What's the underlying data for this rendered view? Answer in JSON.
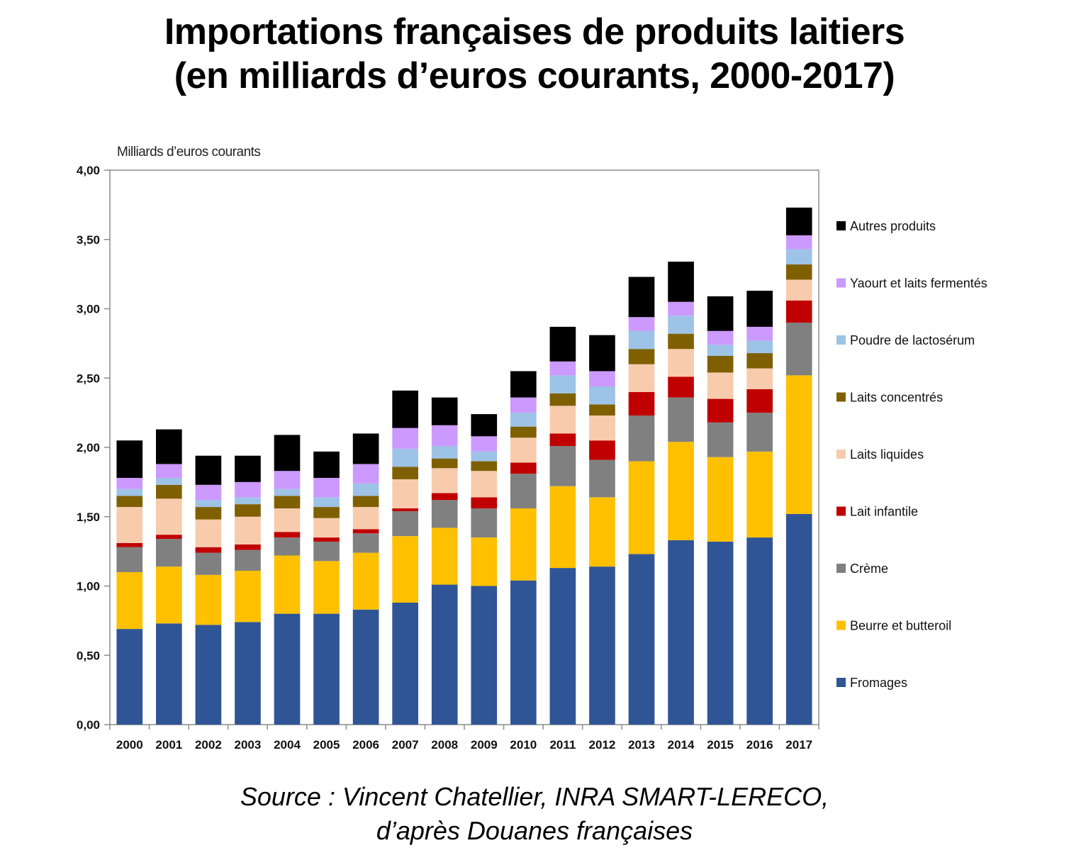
{
  "title_line1": "Importations françaises de produits laitiers",
  "title_line2": "(en milliards d’euros courants, 2000-2017)",
  "source_line1": "Source : Vincent Chatellier, INRA SMART-LERECO,",
  "source_line2": "d’après Douanes françaises",
  "chart_data": {
    "type": "bar",
    "stacked": true,
    "title": "Importations françaises de produits laitiers (en milliards d’euros courants, 2000-2017)",
    "ylabel": "Milliards d’euros courants",
    "xlabel": "",
    "ylim": [
      0,
      4
    ],
    "yticks": [
      "0,00",
      "0,50",
      "1,00",
      "1,50",
      "2,00",
      "2,50",
      "3,00",
      "3,50",
      "4,00"
    ],
    "ytick_values": [
      0,
      0.5,
      1,
      1.5,
      2,
      2.5,
      3,
      3.5,
      4
    ],
    "grid": false,
    "legend_position": "right",
    "categories": [
      "2000",
      "2001",
      "2002",
      "2003",
      "2004",
      "2005",
      "2006",
      "2007",
      "2008",
      "2009",
      "2010",
      "2011",
      "2012",
      "2013",
      "2014",
      "2015",
      "2016",
      "2017"
    ],
    "series": [
      {
        "name": "Fromages",
        "color": "#2f5597",
        "values": [
          0.69,
          0.73,
          0.72,
          0.74,
          0.8,
          0.8,
          0.83,
          0.88,
          1.01,
          1.0,
          1.04,
          1.13,
          1.14,
          1.23,
          1.33,
          1.32,
          1.35,
          1.52
        ]
      },
      {
        "name": "Beurre et butteroil",
        "color": "#ffc000",
        "values": [
          0.41,
          0.41,
          0.36,
          0.37,
          0.42,
          0.38,
          0.41,
          0.48,
          0.41,
          0.35,
          0.52,
          0.59,
          0.5,
          0.67,
          0.71,
          0.61,
          0.62,
          1.0
        ]
      },
      {
        "name": "Crème",
        "color": "#808080",
        "values": [
          0.18,
          0.2,
          0.16,
          0.15,
          0.13,
          0.14,
          0.14,
          0.18,
          0.2,
          0.21,
          0.25,
          0.29,
          0.27,
          0.33,
          0.32,
          0.25,
          0.28,
          0.38
        ]
      },
      {
        "name": "Lait infantile",
        "color": "#c00000",
        "values": [
          0.03,
          0.03,
          0.04,
          0.04,
          0.04,
          0.03,
          0.03,
          0.02,
          0.05,
          0.08,
          0.08,
          0.09,
          0.14,
          0.17,
          0.15,
          0.17,
          0.17,
          0.16
        ]
      },
      {
        "name": "Laits liquides",
        "color": "#f8cbad",
        "values": [
          0.26,
          0.26,
          0.2,
          0.2,
          0.17,
          0.14,
          0.16,
          0.21,
          0.18,
          0.19,
          0.18,
          0.2,
          0.18,
          0.2,
          0.2,
          0.19,
          0.15,
          0.15
        ]
      },
      {
        "name": "Laits concentrés",
        "color": "#7f6000",
        "values": [
          0.08,
          0.1,
          0.09,
          0.09,
          0.09,
          0.08,
          0.08,
          0.09,
          0.07,
          0.07,
          0.08,
          0.09,
          0.08,
          0.11,
          0.11,
          0.12,
          0.11,
          0.11
        ]
      },
      {
        "name": "Poudre de lactosérum",
        "color": "#9dc3e6",
        "values": [
          0.05,
          0.05,
          0.05,
          0.05,
          0.05,
          0.07,
          0.09,
          0.13,
          0.09,
          0.07,
          0.1,
          0.13,
          0.13,
          0.13,
          0.13,
          0.08,
          0.09,
          0.11
        ]
      },
      {
        "name": "Yaourt et laits fermentés",
        "color": "#cc99ff",
        "values": [
          0.08,
          0.1,
          0.11,
          0.11,
          0.13,
          0.14,
          0.14,
          0.15,
          0.15,
          0.11,
          0.11,
          0.1,
          0.11,
          0.1,
          0.1,
          0.1,
          0.1,
          0.1
        ]
      },
      {
        "name": "Autres produits",
        "color": "#000000",
        "values": [
          0.27,
          0.25,
          0.21,
          0.19,
          0.26,
          0.19,
          0.22,
          0.27,
          0.2,
          0.16,
          0.19,
          0.25,
          0.26,
          0.29,
          0.29,
          0.25,
          0.26,
          0.2
        ]
      }
    ]
  }
}
